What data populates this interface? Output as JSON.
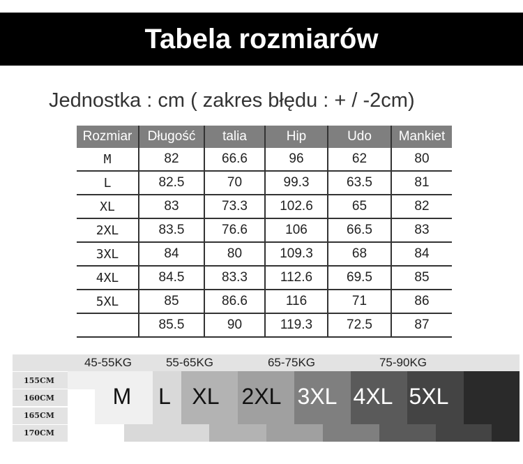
{
  "title": "Tabela rozmiarów",
  "subtitle": "Jednostka : cm ( zakres błędu : + / -2cm)",
  "table": {
    "headers": [
      "Rozmiar",
      "Długość",
      "talia",
      "Hip",
      "Udo",
      "Mankiet"
    ],
    "rows": [
      [
        "M",
        "82",
        "66.6",
        "96",
        "62",
        "80"
      ],
      [
        "L",
        "82.5",
        "70",
        "99.3",
        "63.5",
        "81"
      ],
      [
        "XL",
        "83",
        "73.3",
        "102.6",
        "65",
        "82"
      ],
      [
        "2XL",
        "83.5",
        "76.6",
        "106",
        "66.5",
        "83"
      ],
      [
        "3XL",
        "84",
        "80",
        "109.3",
        "68",
        "84"
      ],
      [
        "4XL",
        "84.5",
        "83.3",
        "112.6",
        "69.5",
        "85"
      ],
      [
        "5XL",
        "85",
        "86.6",
        "116",
        "71",
        "86"
      ],
      [
        "",
        "85.5",
        "90",
        "119.3",
        "72.5",
        "87"
      ]
    ]
  },
  "guide": {
    "weights": [
      "45-55KG",
      "55-65KG",
      "65-75KG",
      "75-90KG"
    ],
    "heights": [
      "155CM",
      "160CM",
      "165CM",
      "170CM"
    ],
    "sizes": [
      "M",
      "L",
      "XL",
      "2XL",
      "3XL",
      "4XL",
      "5XL"
    ],
    "colors": [
      "#f0f0f0",
      "#d9d9d9",
      "#b3b3b3",
      "#a0a0a0",
      "#7f7f7f",
      "#5a5a5a",
      "#444444",
      "#2a2a2a"
    ]
  }
}
